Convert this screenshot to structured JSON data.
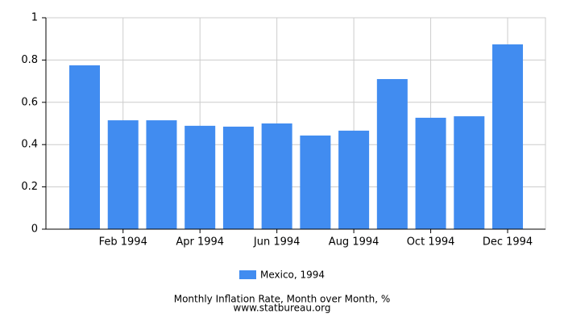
{
  "chart_data": {
    "type": "bar",
    "categories": [
      null,
      "Feb 1994",
      null,
      "Apr 1994",
      null,
      "Jun 1994",
      null,
      "Aug 1994",
      null,
      "Oct 1994",
      null,
      "Dec 1994"
    ],
    "series": [
      {
        "name": "Mexico, 1994",
        "color": "#418cf0",
        "values": [
          0.775,
          0.515,
          0.515,
          0.489,
          0.485,
          0.5,
          0.443,
          0.466,
          0.71,
          0.527,
          0.534,
          0.874
        ]
      }
    ],
    "ylim": [
      0,
      1
    ],
    "yticks": [
      0,
      0.2,
      0.4,
      0.6,
      0.8,
      1
    ],
    "grid": true,
    "legend": "bottom",
    "title": "Monthly Inflation Rate, Month over Month, %",
    "subtitle": "www.statbureau.org"
  }
}
